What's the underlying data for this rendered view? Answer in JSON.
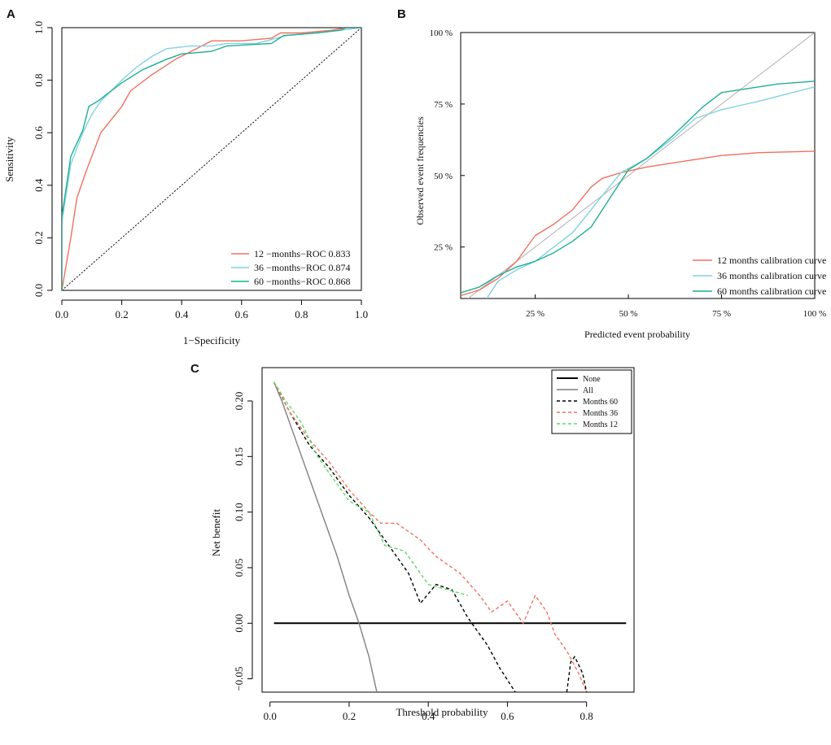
{
  "colors": {
    "red": "#f07060",
    "cyan": "#7fd4e0",
    "teal": "#1fae94",
    "black": "#000000",
    "gray": "#7f7f7f",
    "green_dash": "#5ed860",
    "ref_gray": "#b0b0b0"
  },
  "panels": {
    "a": {
      "letter": "A"
    },
    "b": {
      "letter": "B"
    },
    "c": {
      "letter": "C"
    }
  },
  "chart_data": [
    {
      "id": "A",
      "type": "line",
      "title": "",
      "xlabel": "1−Specificity",
      "ylabel": "Sensitivity",
      "xlim": [
        0,
        1
      ],
      "ylim": [
        0,
        1
      ],
      "xticks": [
        "0.0",
        "0.2",
        "0.4",
        "0.6",
        "0.8",
        "1.0"
      ],
      "yticks": [
        "0.0",
        "0.2",
        "0.4",
        "0.6",
        "0.8",
        "1.0"
      ],
      "legend_position": "bottom-right",
      "reference": {
        "name": "diagonal",
        "points": [
          [
            0,
            0
          ],
          [
            1,
            1
          ]
        ],
        "style": "dotted"
      },
      "series": [
        {
          "name": "12 −months−ROC 0.833",
          "color": "red",
          "style": "solid",
          "points": [
            [
              0,
              0
            ],
            [
              0.03,
              0.2
            ],
            [
              0.05,
              0.35
            ],
            [
              0.08,
              0.45
            ],
            [
              0.13,
              0.6
            ],
            [
              0.2,
              0.7
            ],
            [
              0.23,
              0.76
            ],
            [
              0.3,
              0.82
            ],
            [
              0.38,
              0.88
            ],
            [
              0.45,
              0.92
            ],
            [
              0.5,
              0.95
            ],
            [
              0.6,
              0.95
            ],
            [
              0.7,
              0.96
            ],
            [
              0.73,
              0.98
            ],
            [
              0.8,
              0.98
            ],
            [
              0.9,
              0.99
            ],
            [
              0.95,
              1.0
            ],
            [
              1,
              1
            ]
          ]
        },
        {
          "name": "36 −months−ROC 0.874",
          "color": "cyan",
          "style": "solid",
          "points": [
            [
              0,
              0
            ],
            [
              0,
              0.26
            ],
            [
              0.03,
              0.48
            ],
            [
              0.07,
              0.6
            ],
            [
              0.1,
              0.67
            ],
            [
              0.13,
              0.72
            ],
            [
              0.2,
              0.8
            ],
            [
              0.25,
              0.85
            ],
            [
              0.3,
              0.89
            ],
            [
              0.35,
              0.92
            ],
            [
              0.43,
              0.93
            ],
            [
              0.5,
              0.93
            ],
            [
              0.55,
              0.94
            ],
            [
              0.65,
              0.94
            ],
            [
              0.75,
              0.97
            ],
            [
              0.85,
              0.98
            ],
            [
              0.93,
              0.99
            ],
            [
              1,
              1
            ]
          ]
        },
        {
          "name": "60 −months−ROC 0.868",
          "color": "teal",
          "style": "solid",
          "points": [
            [
              0,
              0
            ],
            [
              0,
              0.28
            ],
            [
              0.03,
              0.51
            ],
            [
              0.07,
              0.61
            ],
            [
              0.09,
              0.7
            ],
            [
              0.12,
              0.72
            ],
            [
              0.2,
              0.79
            ],
            [
              0.27,
              0.84
            ],
            [
              0.35,
              0.88
            ],
            [
              0.4,
              0.9
            ],
            [
              0.5,
              0.91
            ],
            [
              0.55,
              0.93
            ],
            [
              0.7,
              0.94
            ],
            [
              0.74,
              0.97
            ],
            [
              0.85,
              0.98
            ],
            [
              0.93,
              0.99
            ],
            [
              0.95,
              1.0
            ],
            [
              1,
              1
            ]
          ]
        }
      ]
    },
    {
      "id": "B",
      "type": "line",
      "title": "",
      "xlabel": "Predicted event probability",
      "ylabel": "Observed event frequencies",
      "xlim": [
        0.05,
        1.0
      ],
      "ylim": [
        0.07,
        1.0
      ],
      "xticks": [
        {
          "v": 0.25,
          "label": "25 %"
        },
        {
          "v": 0.5,
          "label": "50 %"
        },
        {
          "v": 0.75,
          "label": "75 %"
        },
        {
          "v": 1.0,
          "label": "100 %"
        }
      ],
      "yticks": [
        {
          "v": 0.25,
          "label": "25 %"
        },
        {
          "v": 0.5,
          "label": "50 %"
        },
        {
          "v": 0.75,
          "label": "75 %"
        },
        {
          "v": 1.0,
          "label": "100 %"
        }
      ],
      "legend_position": "bottom-right",
      "reference": {
        "name": "ideal",
        "points": [
          [
            0.05,
            0.05
          ],
          [
            1.0,
            1.0
          ]
        ],
        "style": "solid"
      },
      "series": [
        {
          "name": "12 months calibration curve",
          "color": "red",
          "style": "solid",
          "points": [
            [
              0.05,
              0.08
            ],
            [
              0.1,
              0.1
            ],
            [
              0.15,
              0.14
            ],
            [
              0.2,
              0.2
            ],
            [
              0.25,
              0.29
            ],
            [
              0.3,
              0.33
            ],
            [
              0.35,
              0.38
            ],
            [
              0.4,
              0.46
            ],
            [
              0.43,
              0.49
            ],
            [
              0.48,
              0.51
            ],
            [
              0.55,
              0.53
            ],
            [
              0.65,
              0.55
            ],
            [
              0.75,
              0.57
            ],
            [
              0.85,
              0.58
            ],
            [
              1.0,
              0.585
            ]
          ]
        },
        {
          "name": "36 months calibration curve",
          "color": "cyan",
          "style": "solid",
          "points": [
            [
              0.12,
              0.07
            ],
            [
              0.15,
              0.13
            ],
            [
              0.2,
              0.17
            ],
            [
              0.25,
              0.2
            ],
            [
              0.3,
              0.25
            ],
            [
              0.35,
              0.3
            ],
            [
              0.4,
              0.38
            ],
            [
              0.43,
              0.43
            ],
            [
              0.48,
              0.51
            ],
            [
              0.55,
              0.56
            ],
            [
              0.62,
              0.63
            ],
            [
              0.68,
              0.7
            ],
            [
              0.75,
              0.73
            ],
            [
              0.85,
              0.76
            ],
            [
              1.0,
              0.81
            ]
          ]
        },
        {
          "name": "60 months calibration curve",
          "color": "teal",
          "style": "solid",
          "points": [
            [
              0.05,
              0.09
            ],
            [
              0.1,
              0.11
            ],
            [
              0.15,
              0.15
            ],
            [
              0.2,
              0.18
            ],
            [
              0.25,
              0.2
            ],
            [
              0.3,
              0.23
            ],
            [
              0.35,
              0.27
            ],
            [
              0.4,
              0.32
            ],
            [
              0.43,
              0.38
            ],
            [
              0.46,
              0.44
            ],
            [
              0.5,
              0.52
            ],
            [
              0.55,
              0.56
            ],
            [
              0.62,
              0.64
            ],
            [
              0.7,
              0.74
            ],
            [
              0.75,
              0.79
            ],
            [
              0.8,
              0.8
            ],
            [
              0.9,
              0.82
            ],
            [
              1.0,
              0.83
            ]
          ]
        }
      ]
    },
    {
      "id": "C",
      "type": "line",
      "title": "",
      "xlabel": "Threshold probability",
      "ylabel": "Net benefit",
      "xlim": [
        -0.02,
        0.92
      ],
      "ylim": [
        -0.062,
        0.23
      ],
      "xticks": [
        "0.0",
        "0.2",
        "0.4",
        "0.6",
        "0.8"
      ],
      "yticks": [
        "−0.05",
        "0.00",
        "0.05",
        "0.10",
        "0.15",
        "0.20"
      ],
      "legend_position": "top-right",
      "series": [
        {
          "name": "None",
          "color": "black",
          "style": "solid",
          "points": [
            [
              0.01,
              0.0
            ],
            [
              0.9,
              0.0
            ]
          ]
        },
        {
          "name": "All",
          "color": "gray",
          "style": "solid",
          "points": [
            [
              0.01,
              0.217
            ],
            [
              0.03,
              0.2
            ],
            [
              0.05,
              0.18
            ],
            [
              0.08,
              0.15
            ],
            [
              0.11,
              0.12
            ],
            [
              0.14,
              0.09
            ],
            [
              0.17,
              0.06
            ],
            [
              0.2,
              0.025
            ],
            [
              0.225,
              0.0
            ],
            [
              0.25,
              -0.03
            ],
            [
              0.27,
              -0.062
            ]
          ]
        },
        {
          "name": "Months 60",
          "color": "black",
          "style": "dashed",
          "points": [
            [
              0.01,
              0.217
            ],
            [
              0.05,
              0.19
            ],
            [
              0.1,
              0.16
            ],
            [
              0.15,
              0.14
            ],
            [
              0.2,
              0.115
            ],
            [
              0.25,
              0.095
            ],
            [
              0.3,
              0.07
            ],
            [
              0.35,
              0.045
            ],
            [
              0.38,
              0.018
            ],
            [
              0.42,
              0.035
            ],
            [
              0.46,
              0.03
            ],
            [
              0.5,
              0.005
            ],
            [
              0.55,
              -0.02
            ],
            [
              0.58,
              -0.04
            ],
            [
              0.62,
              -0.062
            ]
          ]
        },
        {
          "name": "Months 36",
          "color": "red",
          "style": "dashed",
          "points": [
            [
              0.01,
              0.217
            ],
            [
              0.05,
              0.19
            ],
            [
              0.1,
              0.165
            ],
            [
              0.15,
              0.145
            ],
            [
              0.2,
              0.12
            ],
            [
              0.25,
              0.1
            ],
            [
              0.28,
              0.09
            ],
            [
              0.32,
              0.09
            ],
            [
              0.38,
              0.075
            ],
            [
              0.42,
              0.06
            ],
            [
              0.48,
              0.045
            ],
            [
              0.53,
              0.025
            ],
            [
              0.56,
              0.01
            ],
            [
              0.6,
              0.02
            ],
            [
              0.64,
              0.0
            ],
            [
              0.67,
              0.025
            ],
            [
              0.7,
              0.01
            ],
            [
              0.72,
              -0.01
            ],
            [
              0.75,
              -0.025
            ],
            [
              0.78,
              -0.045
            ],
            [
              0.8,
              -0.062
            ]
          ]
        },
        {
          "name": "Months 12",
          "color": "green_dash",
          "style": "dashed",
          "points": [
            [
              0.01,
              0.217
            ],
            [
              0.04,
              0.2
            ],
            [
              0.08,
              0.18
            ],
            [
              0.12,
              0.15
            ],
            [
              0.16,
              0.13
            ],
            [
              0.2,
              0.11
            ],
            [
              0.25,
              0.1
            ],
            [
              0.29,
              0.07
            ],
            [
              0.34,
              0.065
            ],
            [
              0.38,
              0.045
            ],
            [
              0.4,
              0.035
            ],
            [
              0.45,
              0.03
            ],
            [
              0.5,
              0.025
            ]
          ]
        },
        {
          "name": "Months 60 tail",
          "legend": false,
          "color": "black",
          "style": "dashed",
          "points": [
            [
              0.75,
              -0.062
            ],
            [
              0.76,
              -0.035
            ],
            [
              0.77,
              -0.03
            ],
            [
              0.79,
              -0.045
            ],
            [
              0.8,
              -0.062
            ]
          ]
        }
      ]
    }
  ]
}
